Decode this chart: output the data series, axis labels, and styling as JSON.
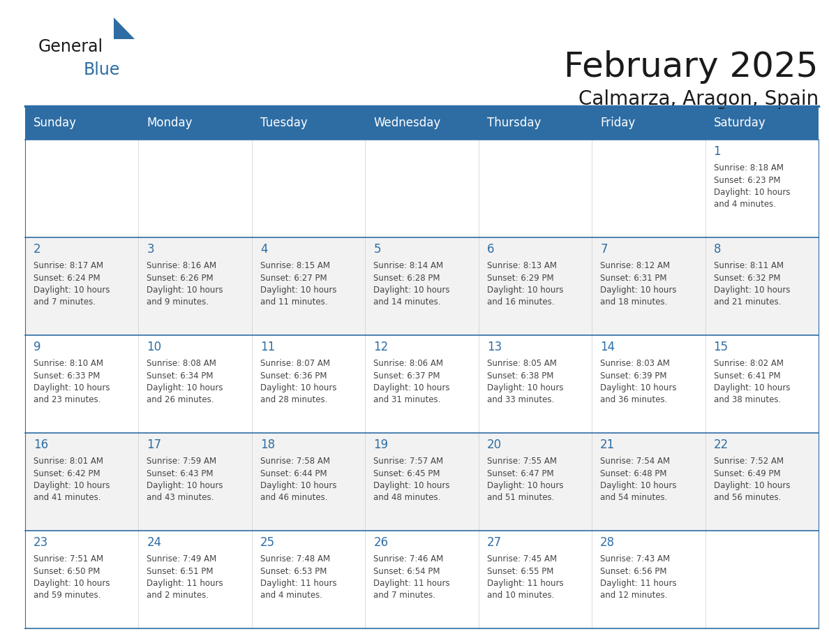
{
  "title": "February 2025",
  "subtitle": "Calmarza, Aragon, Spain",
  "header_color": "#2E6DA4",
  "header_text_color": "#FFFFFF",
  "cell_bg_even": "#FFFFFF",
  "cell_bg_odd": "#F2F2F2",
  "line_color": "#2E6DA4",
  "days_of_week": [
    "Sunday",
    "Monday",
    "Tuesday",
    "Wednesday",
    "Thursday",
    "Friday",
    "Saturday"
  ],
  "weeks": [
    [
      {
        "day": "",
        "text": ""
      },
      {
        "day": "",
        "text": ""
      },
      {
        "day": "",
        "text": ""
      },
      {
        "day": "",
        "text": ""
      },
      {
        "day": "",
        "text": ""
      },
      {
        "day": "",
        "text": ""
      },
      {
        "day": "1",
        "text": "Sunrise: 8:18 AM\nSunset: 6:23 PM\nDaylight: 10 hours\nand 4 minutes."
      }
    ],
    [
      {
        "day": "2",
        "text": "Sunrise: 8:17 AM\nSunset: 6:24 PM\nDaylight: 10 hours\nand 7 minutes."
      },
      {
        "day": "3",
        "text": "Sunrise: 8:16 AM\nSunset: 6:26 PM\nDaylight: 10 hours\nand 9 minutes."
      },
      {
        "day": "4",
        "text": "Sunrise: 8:15 AM\nSunset: 6:27 PM\nDaylight: 10 hours\nand 11 minutes."
      },
      {
        "day": "5",
        "text": "Sunrise: 8:14 AM\nSunset: 6:28 PM\nDaylight: 10 hours\nand 14 minutes."
      },
      {
        "day": "6",
        "text": "Sunrise: 8:13 AM\nSunset: 6:29 PM\nDaylight: 10 hours\nand 16 minutes."
      },
      {
        "day": "7",
        "text": "Sunrise: 8:12 AM\nSunset: 6:31 PM\nDaylight: 10 hours\nand 18 minutes."
      },
      {
        "day": "8",
        "text": "Sunrise: 8:11 AM\nSunset: 6:32 PM\nDaylight: 10 hours\nand 21 minutes."
      }
    ],
    [
      {
        "day": "9",
        "text": "Sunrise: 8:10 AM\nSunset: 6:33 PM\nDaylight: 10 hours\nand 23 minutes."
      },
      {
        "day": "10",
        "text": "Sunrise: 8:08 AM\nSunset: 6:34 PM\nDaylight: 10 hours\nand 26 minutes."
      },
      {
        "day": "11",
        "text": "Sunrise: 8:07 AM\nSunset: 6:36 PM\nDaylight: 10 hours\nand 28 minutes."
      },
      {
        "day": "12",
        "text": "Sunrise: 8:06 AM\nSunset: 6:37 PM\nDaylight: 10 hours\nand 31 minutes."
      },
      {
        "day": "13",
        "text": "Sunrise: 8:05 AM\nSunset: 6:38 PM\nDaylight: 10 hours\nand 33 minutes."
      },
      {
        "day": "14",
        "text": "Sunrise: 8:03 AM\nSunset: 6:39 PM\nDaylight: 10 hours\nand 36 minutes."
      },
      {
        "day": "15",
        "text": "Sunrise: 8:02 AM\nSunset: 6:41 PM\nDaylight: 10 hours\nand 38 minutes."
      }
    ],
    [
      {
        "day": "16",
        "text": "Sunrise: 8:01 AM\nSunset: 6:42 PM\nDaylight: 10 hours\nand 41 minutes."
      },
      {
        "day": "17",
        "text": "Sunrise: 7:59 AM\nSunset: 6:43 PM\nDaylight: 10 hours\nand 43 minutes."
      },
      {
        "day": "18",
        "text": "Sunrise: 7:58 AM\nSunset: 6:44 PM\nDaylight: 10 hours\nand 46 minutes."
      },
      {
        "day": "19",
        "text": "Sunrise: 7:57 AM\nSunset: 6:45 PM\nDaylight: 10 hours\nand 48 minutes."
      },
      {
        "day": "20",
        "text": "Sunrise: 7:55 AM\nSunset: 6:47 PM\nDaylight: 10 hours\nand 51 minutes."
      },
      {
        "day": "21",
        "text": "Sunrise: 7:54 AM\nSunset: 6:48 PM\nDaylight: 10 hours\nand 54 minutes."
      },
      {
        "day": "22",
        "text": "Sunrise: 7:52 AM\nSunset: 6:49 PM\nDaylight: 10 hours\nand 56 minutes."
      }
    ],
    [
      {
        "day": "23",
        "text": "Sunrise: 7:51 AM\nSunset: 6:50 PM\nDaylight: 10 hours\nand 59 minutes."
      },
      {
        "day": "24",
        "text": "Sunrise: 7:49 AM\nSunset: 6:51 PM\nDaylight: 11 hours\nand 2 minutes."
      },
      {
        "day": "25",
        "text": "Sunrise: 7:48 AM\nSunset: 6:53 PM\nDaylight: 11 hours\nand 4 minutes."
      },
      {
        "day": "26",
        "text": "Sunrise: 7:46 AM\nSunset: 6:54 PM\nDaylight: 11 hours\nand 7 minutes."
      },
      {
        "day": "27",
        "text": "Sunrise: 7:45 AM\nSunset: 6:55 PM\nDaylight: 11 hours\nand 10 minutes."
      },
      {
        "day": "28",
        "text": "Sunrise: 7:43 AM\nSunset: 6:56 PM\nDaylight: 11 hours\nand 12 minutes."
      },
      {
        "day": "",
        "text": ""
      }
    ]
  ],
  "logo_text_general": "General",
  "logo_text_blue": "Blue",
  "logo_triangle_color": "#2E6DA4",
  "title_fontsize": 36,
  "subtitle_fontsize": 20,
  "header_fontsize": 12,
  "day_num_fontsize": 12,
  "cell_text_fontsize": 8.5
}
